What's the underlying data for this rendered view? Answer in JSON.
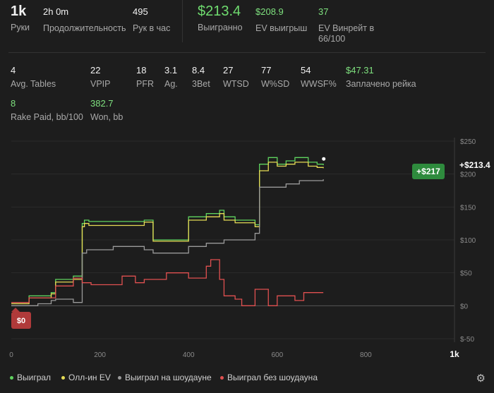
{
  "summary": {
    "hands": {
      "value": "1k",
      "label": "Руки"
    },
    "duration": {
      "value": "2h 0m",
      "label": "Продолжительность"
    },
    "hands_per_hour": {
      "value": "495",
      "label": "Рук в час"
    },
    "won": {
      "value": "$213.4",
      "label": "Выигранно"
    },
    "ev_won": {
      "value": "$208.9",
      "label": "EV выигрыш"
    },
    "ev_winrate": {
      "value": "37",
      "label": "EV Винрейт в 66/100"
    }
  },
  "stats_row1": [
    {
      "value": "4",
      "label": "Avg. Tables"
    },
    {
      "value": "22",
      "label": "VPIP"
    },
    {
      "value": "18",
      "label": "PFR"
    },
    {
      "value": "3.1",
      "label": "Ag."
    },
    {
      "value": "8.4",
      "label": "3Bet"
    },
    {
      "value": "27",
      "label": "WTSD"
    },
    {
      "value": "77",
      "label": "W%SD"
    },
    {
      "value": "54",
      "label": "WWSF%"
    },
    {
      "value": "$47.31",
      "label": "Заплачено рейка"
    }
  ],
  "stats_row2": [
    {
      "value": "8",
      "label": "Rake Paid, bb/100"
    },
    {
      "value": "382.7",
      "label": "Won, bb"
    }
  ],
  "chart_data": {
    "type": "line",
    "x_ticks": [
      "0",
      "200",
      "400",
      "600",
      "800",
      "1k"
    ],
    "y_ticks": [
      "$250",
      "$200",
      "$150",
      "$100",
      "$50",
      "$0",
      "$-50"
    ],
    "xlim": [
      0,
      1000
    ],
    "ylim": [
      -50,
      250
    ],
    "end_label": "+$213.4",
    "tooltip_label": "+$217",
    "start_badge": "$0",
    "series": [
      {
        "name": "Выиграл",
        "color": "#5fd35f",
        "x": [
          0,
          40,
          90,
          100,
          140,
          160,
          165,
          175,
          300,
          320,
          400,
          440,
          470,
          480,
          505,
          550,
          560,
          580,
          600,
          620,
          640,
          670,
          690,
          704
        ],
        "y": [
          5,
          15,
          20,
          40,
          45,
          125,
          130,
          128,
          130,
          100,
          135,
          140,
          145,
          135,
          130,
          123,
          215,
          225,
          215,
          220,
          225,
          218,
          215,
          213.4
        ]
      },
      {
        "name": "Олл-ин EV",
        "color": "#e6dc55",
        "x": [
          0,
          40,
          90,
          100,
          140,
          160,
          165,
          175,
          300,
          320,
          400,
          440,
          470,
          480,
          505,
          550,
          560,
          580,
          600,
          620,
          640,
          670,
          690,
          704
        ],
        "y": [
          3,
          12,
          18,
          36,
          40,
          120,
          125,
          122,
          127,
          98,
          130,
          135,
          140,
          130,
          126,
          120,
          205,
          218,
          212,
          215,
          218,
          212,
          210,
          208.9
        ]
      },
      {
        "name": "Выиграл на шоудауне",
        "color": "#9a9a9a",
        "x": [
          0,
          60,
          90,
          100,
          140,
          160,
          170,
          230,
          300,
          320,
          400,
          440,
          470,
          480,
          505,
          550,
          560,
          620,
          650,
          704
        ],
        "y": [
          0,
          3,
          8,
          10,
          5,
          80,
          85,
          90,
          85,
          80,
          90,
          95,
          95,
          100,
          100,
          110,
          180,
          185,
          190,
          192
        ]
      },
      {
        "name": "Выиграл без шоудауна",
        "color": "#e05050",
        "x": [
          0,
          40,
          90,
          100,
          140,
          160,
          180,
          250,
          280,
          300,
          350,
          400,
          440,
          450,
          470,
          480,
          505,
          520,
          550,
          580,
          600,
          640,
          660,
          704
        ],
        "y": [
          5,
          12,
          12,
          30,
          42,
          35,
          32,
          45,
          35,
          40,
          50,
          42,
          60,
          70,
          40,
          15,
          10,
          0,
          25,
          0,
          15,
          8,
          20,
          20
        ]
      }
    ]
  },
  "legend": [
    {
      "label": "Выиграл",
      "color": "#5fd35f"
    },
    {
      "label": "Олл-ин EV",
      "color": "#e6dc55"
    },
    {
      "label": "Выиграл на шоудауне",
      "color": "#9a9a9a"
    },
    {
      "label": "Выиграл без шоудауна",
      "color": "#e05050"
    }
  ],
  "icons": {
    "settings": "gear-icon"
  }
}
